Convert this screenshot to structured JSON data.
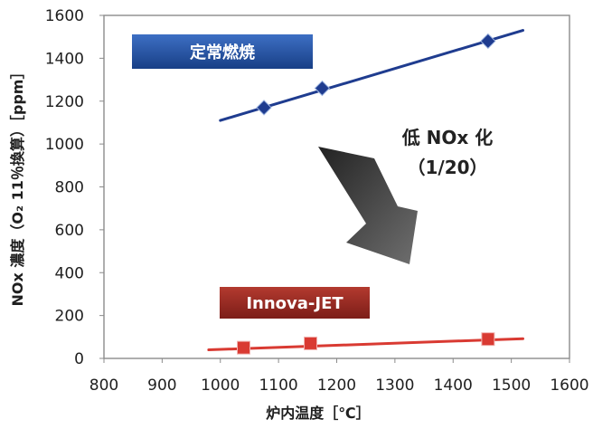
{
  "chart_data": {
    "type": "line",
    "title": "",
    "xlabel": "炉内温度［℃］",
    "ylabel": "NOx 濃度（O₂ 11％換算）［ppm］",
    "xlim": [
      800,
      1600
    ],
    "ylim": [
      0,
      1600
    ],
    "x_ticks": [
      "800",
      "900",
      "1000",
      "1100",
      "1200",
      "1300",
      "1400",
      "1500",
      "1600"
    ],
    "y_ticks": [
      "0",
      "200",
      "400",
      "600",
      "800",
      "1000",
      "1200",
      "1400",
      "1600"
    ],
    "grid": false,
    "series": [
      {
        "name": "定常燃焼",
        "color": "#1f3c8f",
        "marker": "diamond",
        "points": [
          {
            "x": 1075,
            "y": 1170
          },
          {
            "x": 1175,
            "y": 1260
          },
          {
            "x": 1460,
            "y": 1480
          }
        ],
        "trend": [
          {
            "x": 1000,
            "y": 1110
          },
          {
            "x": 1520,
            "y": 1530
          }
        ]
      },
      {
        "name": "Innova-JET",
        "color": "#d93a32",
        "marker": "square",
        "points": [
          {
            "x": 1040,
            "y": 50
          },
          {
            "x": 1155,
            "y": 70
          },
          {
            "x": 1460,
            "y": 90
          }
        ],
        "trend": [
          {
            "x": 980,
            "y": 40
          },
          {
            "x": 1520,
            "y": 92
          }
        ]
      }
    ],
    "annotations": {
      "reduction_line1": "低 NOx 化",
      "reduction_line2": "（1/20）"
    },
    "label_colors": {
      "steady": "#1f4f9e",
      "innova": "#8b1f1a"
    }
  }
}
